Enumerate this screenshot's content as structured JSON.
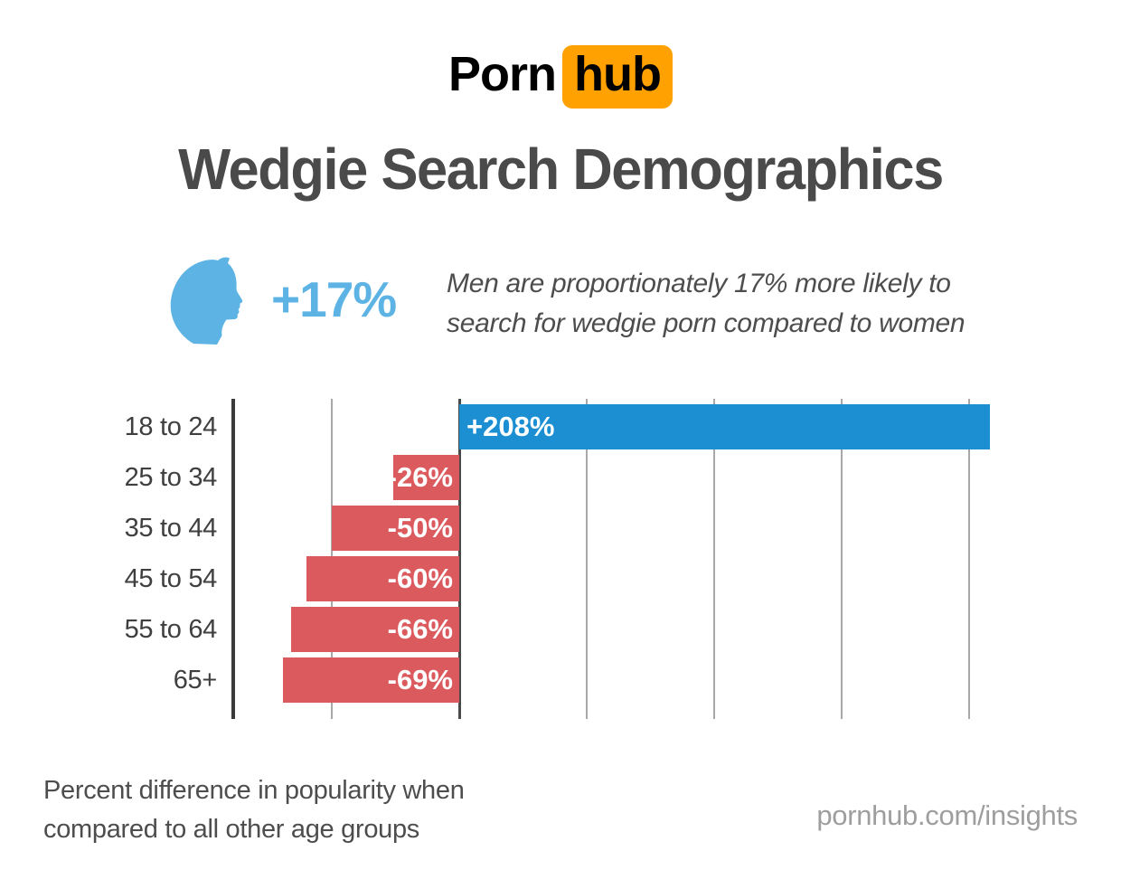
{
  "logo": {
    "part1": "Porn",
    "part2": "hub",
    "badge_color": "#ffa100",
    "text_color": "#000000"
  },
  "title": {
    "text": "Wedgie Search Demographics",
    "color": "#4a4a4a"
  },
  "highlight": {
    "icon": "male-head-profile",
    "icon_color": "#5cb3e4",
    "value": "+17%",
    "value_color": "#5cb3e4",
    "description_line1": "Men are proportionately 17% more likely to",
    "description_line2": "search for wedgie porn compared to women"
  },
  "chart_data": {
    "type": "bar",
    "orientation": "horizontal",
    "categories": [
      "18 to 24",
      "25 to 34",
      "35 to 44",
      "45 to 54",
      "55 to 64",
      "65+"
    ],
    "values": [
      208,
      -26,
      -50,
      -60,
      -66,
      -69
    ],
    "labels": [
      "+208%",
      "-26%",
      "-50%",
      "-60%",
      "-66%",
      "-69%"
    ],
    "unit": "%",
    "positive_color": "#1b8fd2",
    "negative_color": "#db5a5e",
    "axis": {
      "gridline_values": [
        -50,
        0,
        50,
        100,
        150,
        200
      ],
      "tick_labels_shown": false,
      "zero_line_color": "#4a4a4a",
      "gridline_color": "#a8a8a8",
      "axis_line_color": "#3a3a3a"
    },
    "legend": "none",
    "grid": true
  },
  "footer": {
    "note_line1": "Percent difference in popularity when",
    "note_line2": "compared to all other age groups",
    "source": "pornhub.com/insights",
    "source_color": "#9e9e9e"
  }
}
